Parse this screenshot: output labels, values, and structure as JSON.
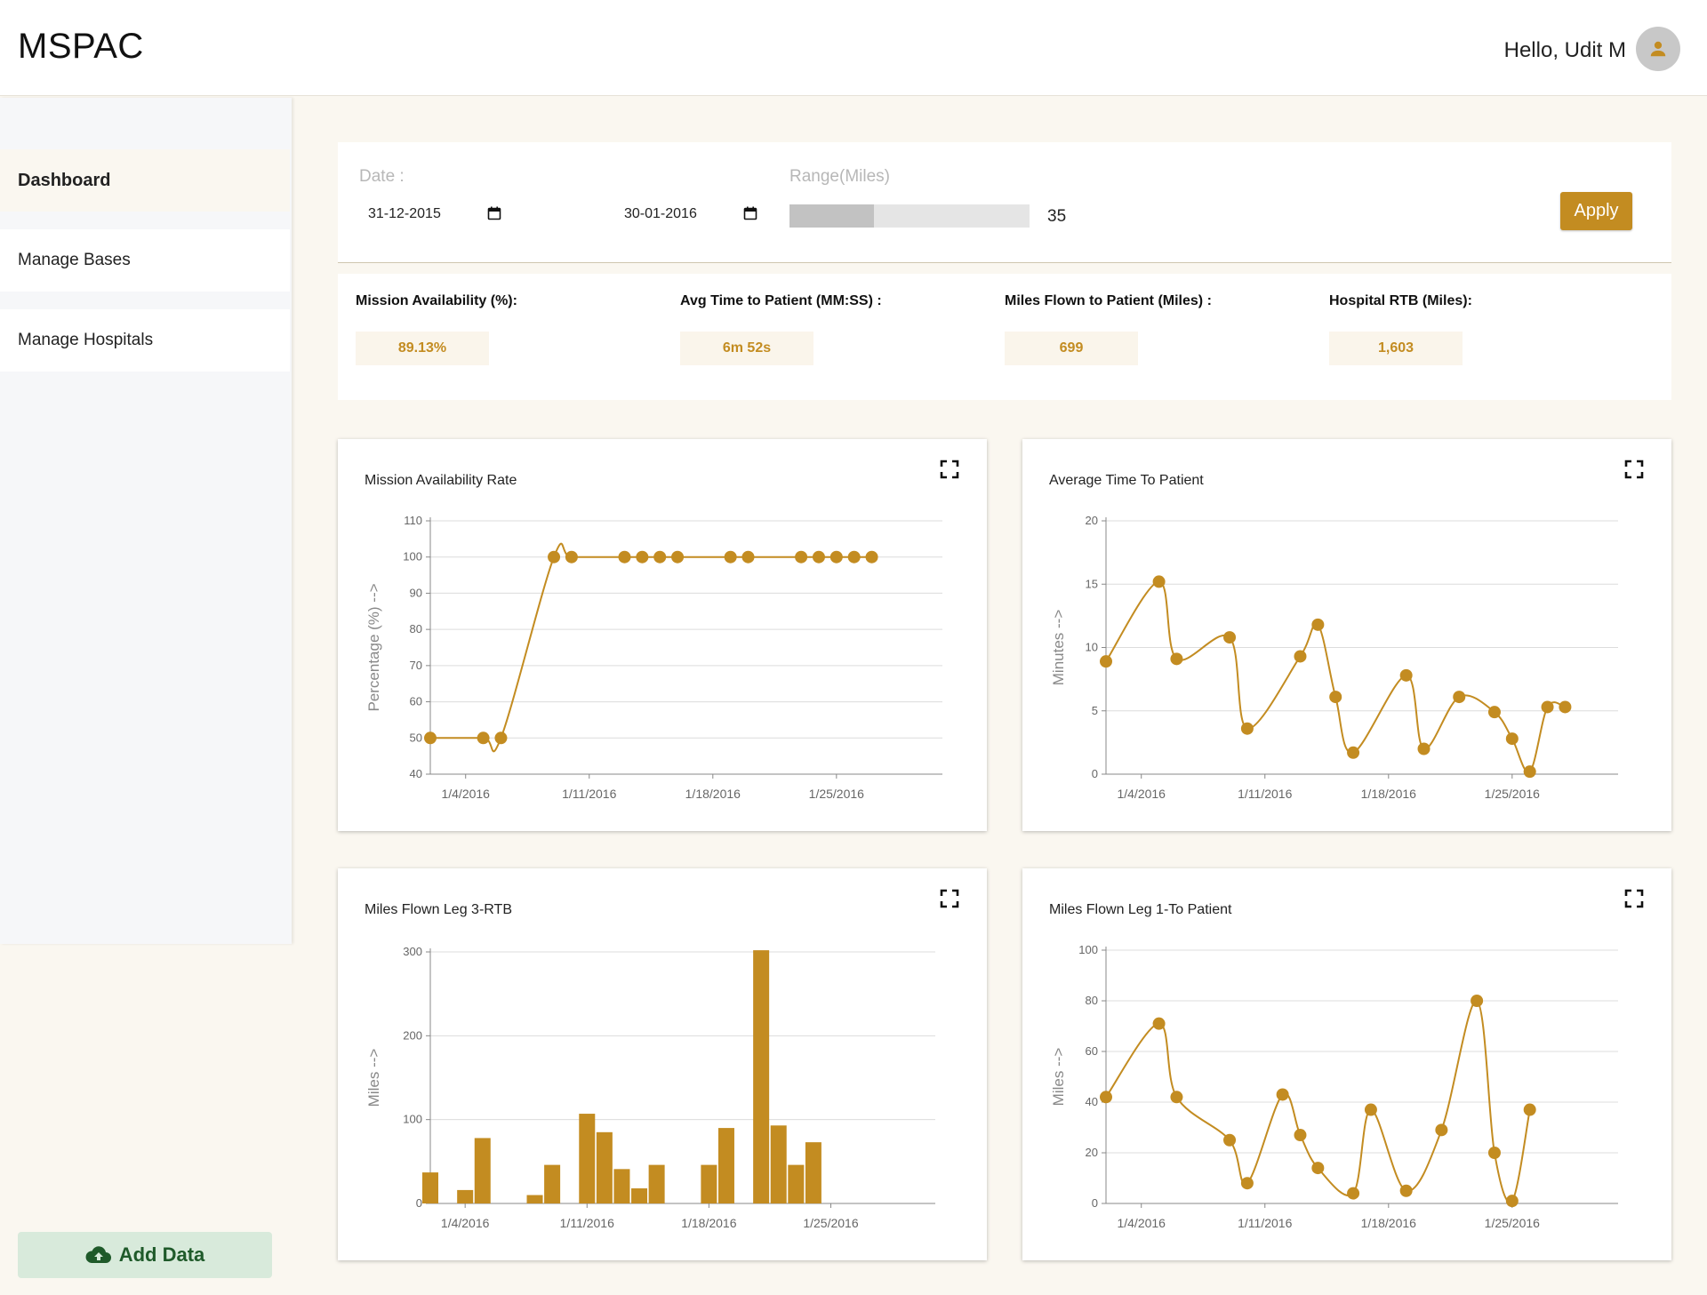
{
  "header": {
    "brand": "MSPAC",
    "greeting": "Hello, Udit M",
    "avatar_icon": "user-icon"
  },
  "sidebar": {
    "items": [
      {
        "label": "Dashboard",
        "active": true
      },
      {
        "label": "Manage Bases",
        "active": false
      },
      {
        "label": "Manage Hospitals",
        "active": false
      }
    ],
    "add_data_label": "Add Data",
    "add_data_icon": "cloud-upload-icon"
  },
  "filters": {
    "date_label": "Date :",
    "start_date": "31-12-2015",
    "end_date": "30-01-2016",
    "range_label": "Range(Miles)",
    "range_value": "35",
    "range_fraction": 0.35,
    "apply_label": "Apply"
  },
  "kpis": [
    {
      "label": "Mission Availability (%):",
      "value": "89.13%"
    },
    {
      "label": "Avg Time to Patient (MM:SS) :",
      "value": "6m 52s"
    },
    {
      "label": "Miles Flown to Patient (Miles) :",
      "value": "699"
    },
    {
      "label": "Hospital RTB (Miles):",
      "value": "1,603"
    }
  ],
  "colors": {
    "accent": "#c38c21",
    "add_data_bg": "#d8eadb",
    "add_data_text": "#1f5a2a",
    "page_bg": "#faf7f0"
  },
  "chart_data": [
    {
      "type": "line",
      "title": "Mission Availability Rate",
      "ylabel": "Percentage (%) -->",
      "xlabel": "",
      "ylim": [
        40,
        110
      ],
      "yticks": [
        40,
        50,
        60,
        70,
        80,
        90,
        100,
        110
      ],
      "xticks": [
        "1/4/2016",
        "1/11/2016",
        "1/18/2016",
        "1/25/2016"
      ],
      "xlim": [
        "2016-01-02",
        "2016-01-31"
      ],
      "grid": true,
      "series": [
        {
          "x": [
            "2016-01-02",
            "2016-01-05",
            "2016-01-06",
            "2016-01-09",
            "2016-01-10",
            "2016-01-13",
            "2016-01-14",
            "2016-01-15",
            "2016-01-16",
            "2016-01-19",
            "2016-01-20",
            "2016-01-23",
            "2016-01-24",
            "2016-01-25",
            "2016-01-26",
            "2016-01-27"
          ],
          "values": [
            50,
            50,
            50,
            100,
            100,
            100,
            100,
            100,
            100,
            100,
            100,
            100,
            100,
            100,
            100,
            100
          ]
        }
      ]
    },
    {
      "type": "line",
      "title": "Average Time To Patient",
      "ylabel": "Minutes -->",
      "xlabel": "",
      "ylim": [
        0,
        20
      ],
      "yticks": [
        0,
        5,
        10,
        15,
        20
      ],
      "xticks": [
        "1/4/2016",
        "1/11/2016",
        "1/18/2016",
        "1/25/2016"
      ],
      "xlim": [
        "2016-01-02",
        "2016-01-31"
      ],
      "grid": true,
      "series": [
        {
          "x": [
            "2016-01-02",
            "2016-01-05",
            "2016-01-06",
            "2016-01-09",
            "2016-01-10",
            "2016-01-13",
            "2016-01-14",
            "2016-01-15",
            "2016-01-16",
            "2016-01-19",
            "2016-01-20",
            "2016-01-22",
            "2016-01-24",
            "2016-01-25",
            "2016-01-26",
            "2016-01-27",
            "2016-01-28"
          ],
          "values": [
            8.9,
            15.2,
            9.1,
            10.8,
            3.6,
            9.3,
            11.8,
            6.1,
            1.7,
            7.8,
            2.0,
            6.1,
            4.9,
            2.8,
            0.2,
            5.3,
            5.3
          ]
        }
      ]
    },
    {
      "type": "bar",
      "title": "Miles Flown Leg 3-RTB",
      "ylabel": "Miles -->",
      "xlabel": "",
      "ylim": [
        0,
        300
      ],
      "yticks": [
        0,
        100,
        200,
        300
      ],
      "xticks": [
        "1/4/2016",
        "1/11/2016",
        "1/18/2016",
        "1/25/2016"
      ],
      "xlim": [
        "2016-01-02",
        "2016-01-31"
      ],
      "grid": true,
      "series": [
        {
          "x": [
            "2016-01-02",
            "2016-01-04",
            "2016-01-05",
            "2016-01-08",
            "2016-01-09",
            "2016-01-11",
            "2016-01-12",
            "2016-01-13",
            "2016-01-14",
            "2016-01-15",
            "2016-01-18",
            "2016-01-19",
            "2016-01-21",
            "2016-01-22",
            "2016-01-23",
            "2016-01-24",
            "2016-01-25"
          ],
          "values": [
            37,
            16,
            78,
            10,
            46,
            107,
            85,
            41,
            18,
            46,
            46,
            90,
            302,
            93,
            46,
            73,
            0
          ]
        }
      ]
    },
    {
      "type": "line",
      "title": "Miles Flown Leg 1-To Patient",
      "ylabel": "Miles -->",
      "xlabel": "",
      "ylim": [
        0,
        100
      ],
      "yticks": [
        0,
        20,
        40,
        60,
        80,
        100
      ],
      "xticks": [
        "1/4/2016",
        "1/11/2016",
        "1/18/2016",
        "1/25/2016"
      ],
      "xlim": [
        "2016-01-02",
        "2016-01-31"
      ],
      "grid": true,
      "series": [
        {
          "x": [
            "2016-01-02",
            "2016-01-05",
            "2016-01-06",
            "2016-01-09",
            "2016-01-10",
            "2016-01-12",
            "2016-01-13",
            "2016-01-14",
            "2016-01-16",
            "2016-01-17",
            "2016-01-19",
            "2016-01-21",
            "2016-01-23",
            "2016-01-24",
            "2016-01-25",
            "2016-01-26"
          ],
          "values": [
            42,
            71,
            42,
            25,
            8,
            43,
            27,
            14,
            4,
            37,
            5,
            29,
            80,
            20,
            1,
            37
          ]
        }
      ]
    }
  ]
}
